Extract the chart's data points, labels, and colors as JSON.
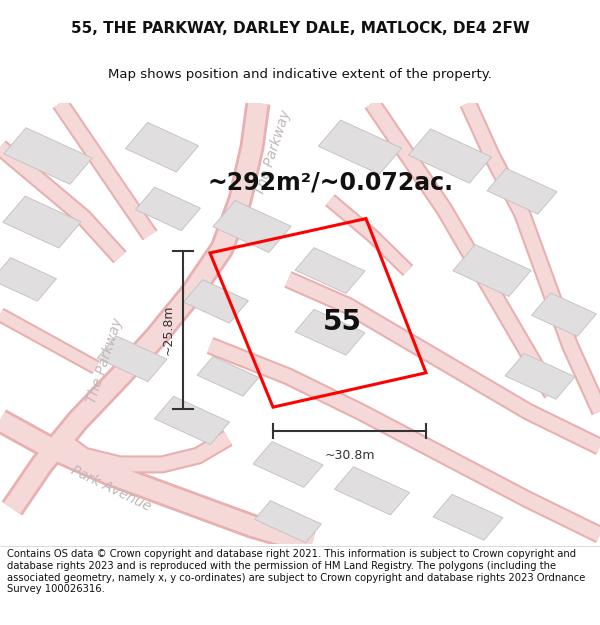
{
  "title_line1": "55, THE PARKWAY, DARLEY DALE, MATLOCK, DE4 2FW",
  "title_line2": "Map shows position and indicative extent of the property.",
  "footer_text": "Contains OS data © Crown copyright and database right 2021. This information is subject to Crown copyright and database rights 2023 and is reproduced with the permission of HM Land Registry. The polygons (including the associated geometry, namely x, y co-ordinates) are subject to Crown copyright and database rights 2023 Ordnance Survey 100026316.",
  "area_text": "~292m²/~0.072ac.",
  "label_55": "55",
  "dim_width": "~30.8m",
  "dim_height": "~25.8m",
  "map_bg": "#f7f4f4",
  "road_fill": "#f5d8d8",
  "road_edge": "#e8b0b0",
  "road_line": "#f0b8b8",
  "building_fill": "#e0dede",
  "building_edge": "#c8c4c4",
  "plot_color": "#ff0000",
  "dim_color": "#333333",
  "road_label_color": "#c0b8b8",
  "title_fontsize": 11,
  "subtitle_fontsize": 9.5,
  "area_fontsize": 17,
  "label_fontsize": 20,
  "dim_fontsize": 9,
  "road_label_fontsize": 10,
  "footer_fontsize": 7.2
}
